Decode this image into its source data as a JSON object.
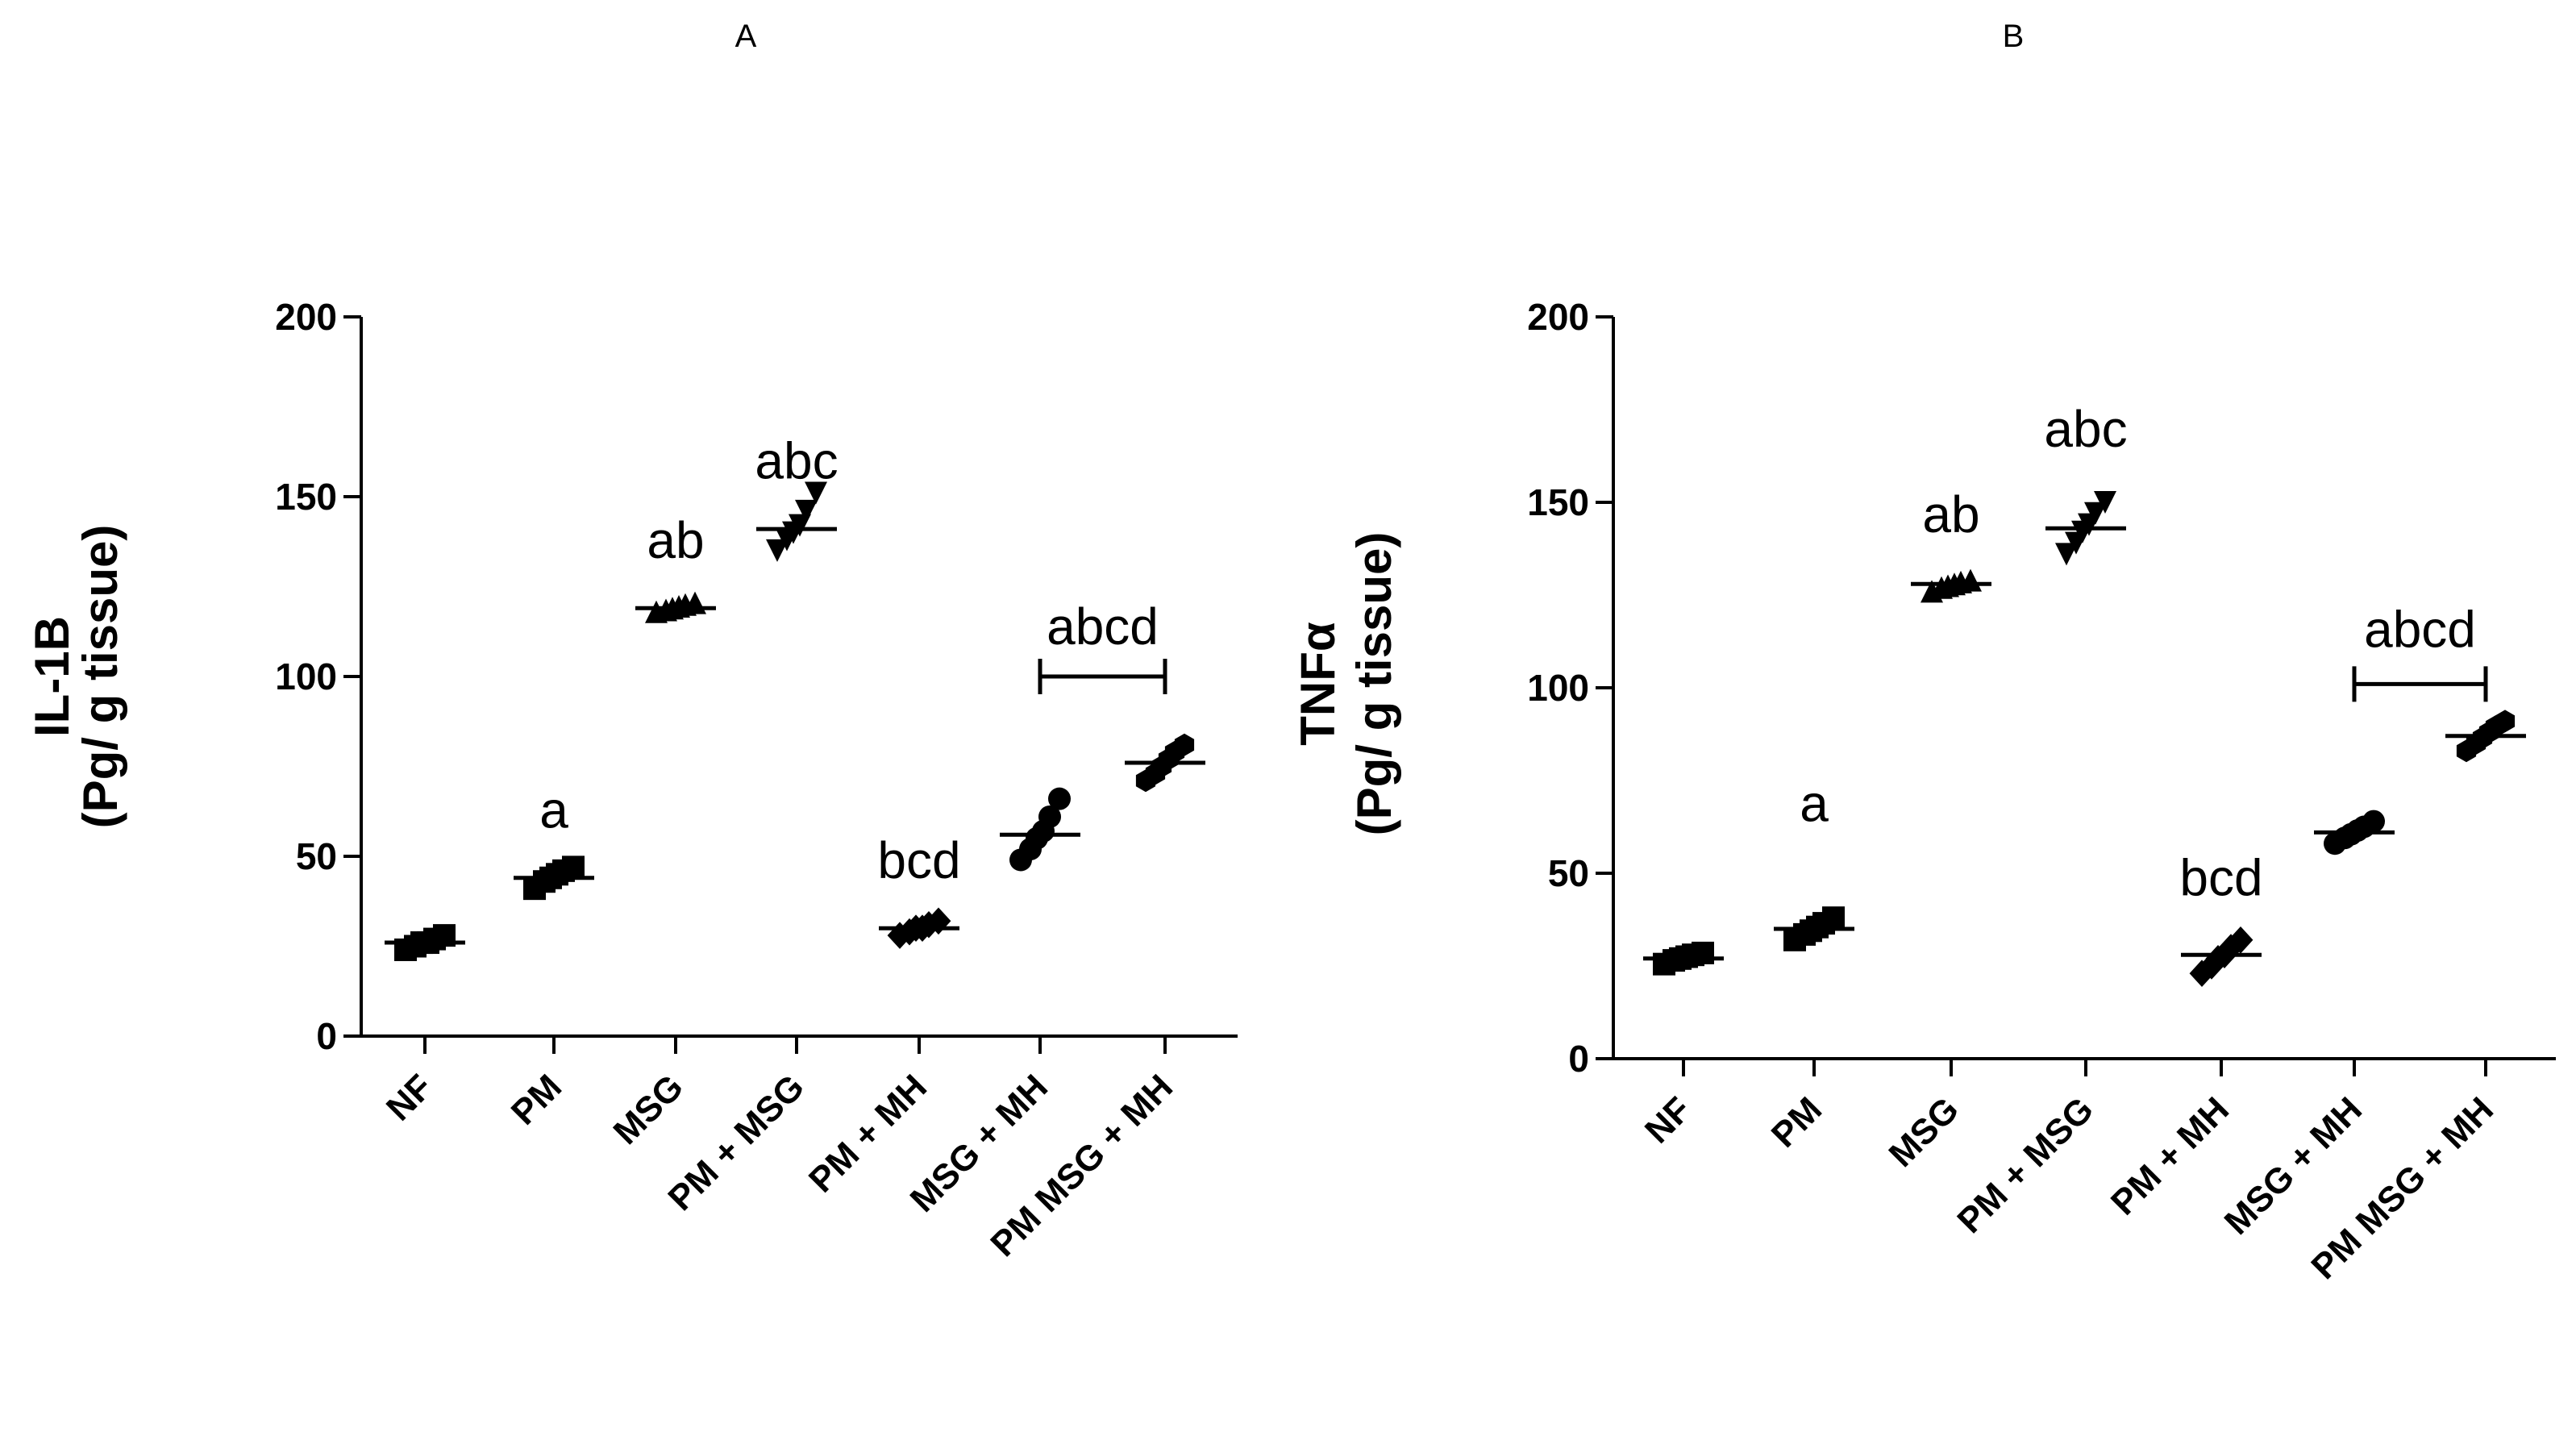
{
  "chart_data": [
    {
      "type": "scatter",
      "panel": "A",
      "title": "",
      "xlabel": "",
      "ylabel": "IL-1B",
      "ylabel_sub": "(Pg/ g tissue)",
      "ylim": [
        0,
        200
      ],
      "yticks": [
        0,
        50,
        100,
        150,
        200
      ],
      "grid": false,
      "categories": [
        "NF",
        "PM",
        "MSG",
        "PM + MSG",
        "PM + MH",
        "MSG + MH",
        "PM MSG + MH"
      ],
      "markers": [
        "square",
        "square",
        "triangle-up",
        "triangle-down",
        "diamond",
        "circle",
        "hexagon"
      ],
      "means": [
        26,
        44,
        119,
        141,
        30,
        56,
        76
      ],
      "points": [
        [
          24,
          25,
          26,
          26,
          27,
          28
        ],
        [
          41,
          43,
          44,
          45,
          46,
          47
        ],
        [
          118,
          118.5,
          119,
          119.5,
          120,
          120.5
        ],
        [
          135,
          138,
          140,
          142,
          146,
          151
        ],
        [
          28,
          29,
          30,
          30,
          31,
          32
        ],
        [
          49,
          52,
          55,
          57,
          61,
          66
        ],
        [
          71,
          73,
          75,
          77,
          79,
          81
        ]
      ],
      "annotations": [
        {
          "text": "a",
          "category": "PM",
          "y": 58
        },
        {
          "text": "ab",
          "category": "MSG",
          "y": 133
        },
        {
          "text": "abc",
          "category": "PM + MSG",
          "y": 155
        },
        {
          "text": "bcd",
          "category": "PM + MH",
          "y": 44
        },
        {
          "text": "abcd",
          "from": "MSG + MH",
          "to": "PM MSG + MH",
          "y": 100,
          "label_y": 109
        }
      ]
    },
    {
      "type": "scatter",
      "panel": "B",
      "title": "",
      "xlabel": "",
      "ylabel": "TNFα",
      "ylabel_sub": "(Pg/ g tissue)",
      "ylim": [
        0,
        200
      ],
      "yticks": [
        0,
        50,
        100,
        150,
        200
      ],
      "grid": false,
      "categories": [
        "NF",
        "PM",
        "MSG",
        "PM + MSG",
        "PM + MH",
        "MSG + MH",
        "PM MSG + MH"
      ],
      "markers": [
        "square",
        "square",
        "triangle-up",
        "triangle-down",
        "diamond",
        "circle",
        "hexagon"
      ],
      "means": [
        27,
        35,
        128,
        143,
        28,
        61,
        87
      ],
      "points": [
        [
          25.5,
          26.5,
          27,
          27.5,
          28,
          28.5
        ],
        [
          32,
          33.5,
          34.5,
          35.5,
          36.5,
          38
        ],
        [
          126,
          127,
          127.5,
          128,
          128.5,
          129
        ],
        [
          136,
          139,
          142,
          144,
          147,
          150
        ],
        [
          23,
          25,
          27,
          28,
          30,
          32
        ],
        [
          58,
          59.5,
          60.5,
          61.5,
          62.5,
          64
        ],
        [
          83,
          85,
          86.5,
          88,
          89.5,
          91
        ]
      ],
      "annotations": [
        {
          "text": "a",
          "category": "PM",
          "y": 64
        },
        {
          "text": "ab",
          "category": "MSG",
          "y": 142
        },
        {
          "text": "abc",
          "category": "PM + MSG",
          "y": 165
        },
        {
          "text": "bcd",
          "category": "PM + MH",
          "y": 44
        },
        {
          "text": "abcd",
          "from": "MSG + MH",
          "to": "PM MSG + MH",
          "y": 101,
          "label_y": 111
        }
      ]
    }
  ]
}
